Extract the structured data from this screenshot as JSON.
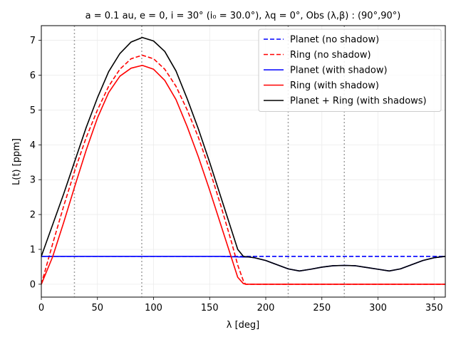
{
  "chart_data": {
    "type": "line",
    "title": "a = 0.1 au, e = 0, i = 30° (i₀ = 30.0°), λq = 0°, Obs (λ,β) : (90°,90°)",
    "xlabel": "λ [deg]",
    "ylabel": "L(t) [ppm]",
    "xlim": [
      0,
      360
    ],
    "ylim": [
      -0.37,
      7.42
    ],
    "x_ticks": [
      0,
      50,
      100,
      150,
      200,
      250,
      300,
      350
    ],
    "x_tick_labels": [
      "0",
      "50",
      "100",
      "150",
      "200",
      "250",
      "300",
      "350"
    ],
    "y_ticks": [
      0,
      1,
      2,
      3,
      4,
      5,
      6,
      7
    ],
    "y_tick_labels": [
      "0",
      "1",
      "2",
      "3",
      "4",
      "5",
      "6",
      "7"
    ],
    "grid": true,
    "vertical_markers": [
      29.5,
      89.5,
      220,
      270
    ],
    "legend_position": "top-right",
    "series": [
      {
        "name": "Planet (no shadow)",
        "color": "#0000ff",
        "dash": "dashed",
        "x": [
          0,
          30,
          60,
          90,
          120,
          150,
          180,
          210,
          240,
          270,
          300,
          330,
          360
        ],
        "y": [
          0.8,
          0.8,
          0.8,
          0.8,
          0.8,
          0.8,
          0.8,
          0.8,
          0.8,
          0.8,
          0.8,
          0.8,
          0.8
        ]
      },
      {
        "name": "Ring (no shadow)",
        "color": "#ff0000",
        "dash": "dashed",
        "x": [
          0,
          10,
          20,
          30,
          40,
          50,
          60,
          70,
          80,
          90,
          100,
          110,
          120,
          130,
          140,
          150,
          160,
          170,
          175,
          180,
          182,
          200,
          250,
          300,
          360
        ],
        "y": [
          0.0,
          1.15,
          2.25,
          3.28,
          4.21,
          5.0,
          5.68,
          6.17,
          6.47,
          6.57,
          6.47,
          6.17,
          5.68,
          5.0,
          4.21,
          3.28,
          2.25,
          1.15,
          0.55,
          0.1,
          0.0,
          0.0,
          0.0,
          0.0,
          0.0
        ]
      },
      {
        "name": "Planet (with shadow)",
        "color": "#0000ff",
        "dash": "solid",
        "x": [
          0,
          30,
          60,
          90,
          120,
          150,
          160,
          170,
          180,
          185,
          190,
          200,
          210,
          220,
          230,
          240,
          250,
          260,
          270,
          280,
          290,
          300,
          310,
          320,
          330,
          340,
          350,
          360
        ],
        "y": [
          0.8,
          0.8,
          0.8,
          0.8,
          0.8,
          0.8,
          0.8,
          0.79,
          0.78,
          0.78,
          0.76,
          0.68,
          0.56,
          0.44,
          0.38,
          0.43,
          0.49,
          0.53,
          0.54,
          0.53,
          0.48,
          0.43,
          0.38,
          0.44,
          0.56,
          0.68,
          0.76,
          0.8
        ]
      },
      {
        "name": "Ring (with shadow)",
        "color": "#ff0000",
        "dash": "solid",
        "x": [
          0,
          10,
          20,
          30,
          40,
          50,
          60,
          70,
          80,
          90,
          100,
          110,
          120,
          130,
          140,
          150,
          160,
          170,
          175,
          180,
          182,
          200,
          250,
          300,
          360
        ],
        "y": [
          0.0,
          0.78,
          1.78,
          2.83,
          3.85,
          4.77,
          5.5,
          5.97,
          6.2,
          6.28,
          6.17,
          5.85,
          5.3,
          4.52,
          3.65,
          2.7,
          1.7,
          0.7,
          0.2,
          0.02,
          0.0,
          0.0,
          0.0,
          0.0,
          0.0
        ]
      },
      {
        "name": "Planet + Ring (with shadows)",
        "color": "#000000",
        "dash": "solid",
        "x": [
          0,
          10,
          20,
          30,
          40,
          50,
          60,
          70,
          80,
          90,
          100,
          110,
          120,
          130,
          140,
          150,
          160,
          170,
          175,
          180,
          185,
          190,
          200,
          210,
          220,
          230,
          240,
          250,
          260,
          270,
          280,
          290,
          300,
          310,
          320,
          330,
          340,
          350,
          360
        ],
        "y": [
          0.8,
          1.7,
          2.6,
          3.55,
          4.5,
          5.35,
          6.1,
          6.62,
          6.95,
          7.08,
          6.98,
          6.68,
          6.12,
          5.32,
          4.45,
          3.5,
          2.5,
          1.5,
          1.0,
          0.8,
          0.78,
          0.76,
          0.68,
          0.56,
          0.44,
          0.38,
          0.43,
          0.49,
          0.53,
          0.54,
          0.53,
          0.48,
          0.43,
          0.38,
          0.44,
          0.56,
          0.68,
          0.76,
          0.8
        ]
      }
    ]
  }
}
